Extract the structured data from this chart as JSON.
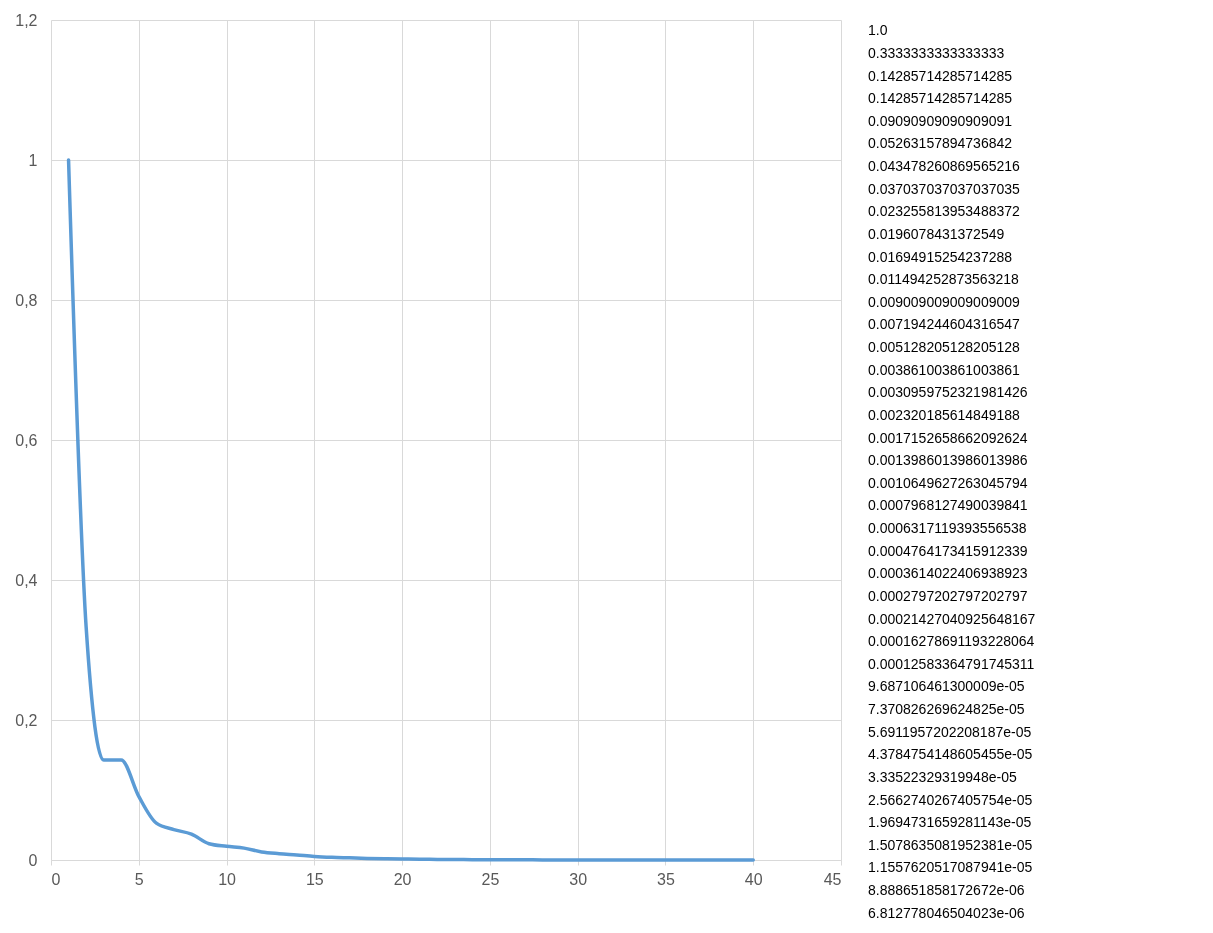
{
  "chart_data": {
    "type": "line",
    "x": [
      1,
      2,
      3,
      4,
      5,
      6,
      7,
      8,
      9,
      10,
      11,
      12,
      13,
      14,
      15,
      16,
      17,
      18,
      19,
      20,
      21,
      22,
      23,
      24,
      25,
      26,
      27,
      28,
      29,
      30,
      31,
      32,
      33,
      34,
      35,
      36,
      37,
      38,
      39,
      40
    ],
    "series": [
      {
        "color": "#5b9bd5",
        "values": [
          1.0,
          0.3333333333333333,
          0.14285714285714285,
          0.14285714285714285,
          0.09090909090909091,
          0.05263157894736842,
          0.043478260869565216,
          0.037037037037037035,
          0.023255813953488372,
          0.0196078431372549,
          0.01694915254237288,
          0.011494252873563218,
          0.009009009009009009,
          0.007194244604316547,
          0.005128205128205128,
          0.003861003861003861,
          0.0030959752321981426,
          0.002320185614849188,
          0.0017152658662092624,
          0.0013986013986013986,
          0.0010649627263045794,
          0.0007968127490039841,
          0.0006317119393556538,
          0.0004764173415912339,
          0.0003614022406938923,
          0.0002797202797202797,
          0.00021427040925648167,
          0.00016278691193228064,
          0.00012583364791745311,
          9.687106461300009e-05,
          7.370826269624825e-05,
          5.6911957202208187e-05,
          4.3784754148605455e-05,
          3.33522329319948e-05,
          2.5662740267405754e-05,
          1.9694731659281143e-05,
          1.5078635081952381e-05,
          1.1557620517087941e-05,
          8.888651858172672e-06,
          6.812778046504023e-06
        ]
      }
    ],
    "annotations": [
      "1.0",
      "0.3333333333333333",
      "0.14285714285714285",
      "0.14285714285714285",
      "0.09090909090909091",
      "0.05263157894736842",
      "0.043478260869565216",
      "0.037037037037037035",
      "0.023255813953488372",
      "0.0196078431372549",
      "0.01694915254237288",
      "0.011494252873563218",
      "0.009009009009009009",
      "0.007194244604316547",
      "0.005128205128205128",
      "0.003861003861003861",
      "0.0030959752321981426",
      "0.002320185614849188",
      "0.0017152658662092624",
      "0.0013986013986013986",
      "0.0010649627263045794",
      "0.0007968127490039841",
      "0.0006317119393556538",
      "0.0004764173415912339",
      "0.0003614022406938923",
      "0.0002797202797202797",
      "0.00021427040925648167",
      "0.00016278691193228064",
      "0.00012583364791745311",
      "9.687106461300009e-05",
      "7.370826269624825e-05",
      "5.6911957202208187e-05",
      "4.3784754148605455e-05",
      "3.33522329319948e-05",
      "2.5662740267405754e-05",
      "1.9694731659281143e-05",
      "1.5078635081952381e-05",
      "1.1557620517087941e-05",
      "8.888651858172672e-06",
      "6.812778046504023e-06"
    ],
    "xlim": [
      0,
      45
    ],
    "xticks": [
      0,
      5,
      10,
      15,
      20,
      25,
      30,
      35,
      40,
      45
    ],
    "ylim": [
      0,
      1.2
    ],
    "yticks": [
      0,
      {
        "value": 0.2,
        "label": "0,2"
      },
      {
        "value": 0.4,
        "label": "0,4"
      },
      {
        "value": 0.6,
        "label": "0,6"
      },
      {
        "value": 0.8,
        "label": "0,8"
      },
      1,
      {
        "value": 1.2,
        "label": "1,2"
      }
    ],
    "grid": true,
    "line_style": "solid",
    "marker": "none"
  }
}
